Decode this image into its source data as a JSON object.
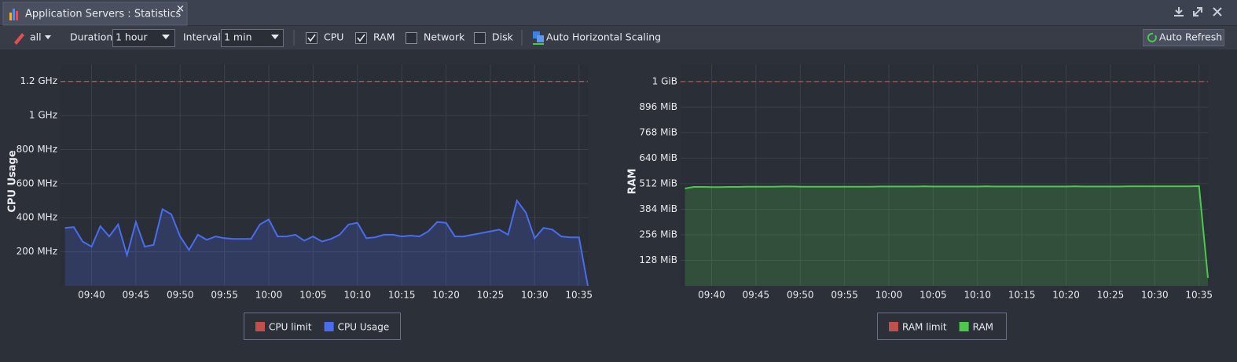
{
  "window": {
    "title": "Application Servers : Statistics"
  },
  "toolbar": {
    "scope": "all",
    "duration_label": "Duration",
    "duration": "1 hour",
    "interval_label": "Interval",
    "interval": "1 min",
    "checkboxes": [
      {
        "label": "CPU",
        "checked": true
      },
      {
        "label": "RAM",
        "checked": true
      },
      {
        "label": "Network",
        "checked": false
      },
      {
        "label": "Disk",
        "checked": false
      }
    ],
    "scaling": "Auto Horizontal Scaling",
    "refresh": "Auto Refresh"
  },
  "chart_data": [
    {
      "type": "line",
      "ylabel": "CPU Usage",
      "x": [
        "09:37",
        "09:38",
        "09:39",
        "09:40",
        "09:41",
        "09:42",
        "09:43",
        "09:44",
        "09:45",
        "09:46",
        "09:47",
        "09:48",
        "09:49",
        "09:50",
        "09:51",
        "09:52",
        "09:53",
        "09:54",
        "09:55",
        "09:56",
        "09:57",
        "09:58",
        "09:59",
        "10:00",
        "10:01",
        "10:02",
        "10:03",
        "10:04",
        "10:05",
        "10:06",
        "10:07",
        "10:08",
        "10:09",
        "10:10",
        "10:11",
        "10:12",
        "10:13",
        "10:14",
        "10:15",
        "10:16",
        "10:17",
        "10:18",
        "10:19",
        "10:20",
        "10:21",
        "10:22",
        "10:23",
        "10:24",
        "10:25",
        "10:26",
        "10:27",
        "10:28",
        "10:29",
        "10:30",
        "10:31",
        "10:32",
        "10:33",
        "10:34",
        "10:35",
        "10:36"
      ],
      "xticks": [
        "09:40",
        "09:45",
        "09:50",
        "09:55",
        "10:00",
        "10:05",
        "10:10",
        "10:15",
        "10:20",
        "10:25",
        "10:30",
        "10:35"
      ],
      "ylim": [
        0,
        1300
      ],
      "yticks": [
        {
          "value": 200,
          "label": "200 MHz"
        },
        {
          "value": 400,
          "label": "400 MHz"
        },
        {
          "value": 600,
          "label": "600 MHz"
        },
        {
          "value": 800,
          "label": "800 MHz"
        },
        {
          "value": 1000,
          "label": "1 GHz"
        },
        {
          "value": 1200,
          "label": "1.2 GHz"
        }
      ],
      "grid": true,
      "series": [
        {
          "name": "CPU limit",
          "color": "#c0504d",
          "value": 1200
        },
        {
          "name": "CPU Usage",
          "color": "#4a6cf0",
          "values": [
            340,
            345,
            260,
            230,
            350,
            290,
            360,
            180,
            375,
            230,
            240,
            450,
            420,
            290,
            210,
            300,
            270,
            290,
            280,
            275,
            275,
            275,
            360,
            390,
            290,
            290,
            300,
            265,
            290,
            260,
            275,
            300,
            360,
            370,
            280,
            285,
            300,
            300,
            290,
            295,
            290,
            320,
            375,
            370,
            290,
            290,
            300,
            310,
            320,
            330,
            300,
            500,
            430,
            280,
            340,
            330,
            290,
            285,
            285,
            0
          ]
        }
      ]
    },
    {
      "type": "line",
      "ylabel": "RAM",
      "x": [
        "09:37",
        "09:38",
        "09:39",
        "09:40",
        "09:41",
        "09:42",
        "09:43",
        "09:44",
        "09:45",
        "09:46",
        "09:47",
        "09:48",
        "09:49",
        "09:50",
        "09:51",
        "09:52",
        "09:53",
        "09:54",
        "09:55",
        "09:56",
        "09:57",
        "09:58",
        "09:59",
        "10:00",
        "10:01",
        "10:02",
        "10:03",
        "10:04",
        "10:05",
        "10:06",
        "10:07",
        "10:08",
        "10:09",
        "10:10",
        "10:11",
        "10:12",
        "10:13",
        "10:14",
        "10:15",
        "10:16",
        "10:17",
        "10:18",
        "10:19",
        "10:20",
        "10:21",
        "10:22",
        "10:23",
        "10:24",
        "10:25",
        "10:26",
        "10:27",
        "10:28",
        "10:29",
        "10:30",
        "10:31",
        "10:32",
        "10:33",
        "10:34",
        "10:35",
        "10:36"
      ],
      "xticks": [
        "09:40",
        "09:45",
        "09:50",
        "09:55",
        "10:00",
        "10:05",
        "10:10",
        "10:15",
        "10:20",
        "10:25",
        "10:30",
        "10:35"
      ],
      "ylim": [
        0,
        1110
      ],
      "yticks": [
        {
          "value": 128,
          "label": "128 MiB"
        },
        {
          "value": 256,
          "label": "256 MiB"
        },
        {
          "value": 384,
          "label": "384 MiB"
        },
        {
          "value": 512,
          "label": "512 MiB"
        },
        {
          "value": 640,
          "label": "640 MiB"
        },
        {
          "value": 768,
          "label": "768 MiB"
        },
        {
          "value": 896,
          "label": "896 MiB"
        },
        {
          "value": 1024,
          "label": "1 GiB"
        }
      ],
      "grid": true,
      "series": [
        {
          "name": "RAM limit",
          "color": "#c0504d",
          "value": 1024
        },
        {
          "name": "RAM",
          "color": "#4cc94c",
          "values": [
            488,
            496,
            496,
            495,
            495,
            496,
            496,
            497,
            497,
            497,
            497,
            498,
            498,
            497,
            497,
            497,
            497,
            497,
            497,
            497,
            497,
            497,
            498,
            498,
            498,
            498,
            498,
            499,
            498,
            498,
            498,
            498,
            498,
            498,
            499,
            498,
            498,
            498,
            498,
            498,
            498,
            498,
            498,
            498,
            499,
            498,
            498,
            498,
            498,
            498,
            499,
            499,
            499,
            499,
            499,
            499,
            499,
            499,
            500,
            40
          ]
        }
      ]
    }
  ]
}
